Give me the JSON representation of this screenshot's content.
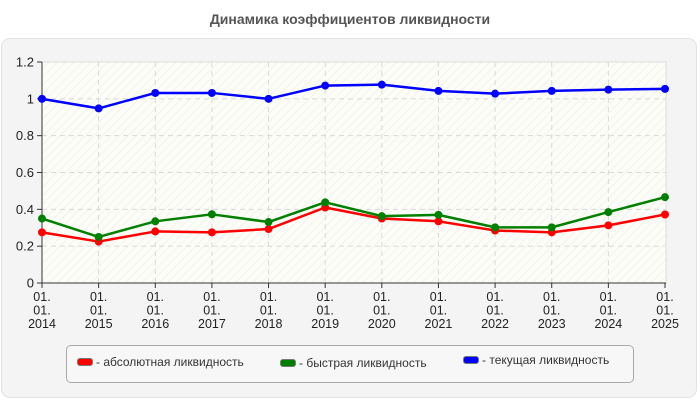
{
  "title": "Динамика коэффициентов ликвидности",
  "legend": [
    {
      "label": "- абсолютная ликвидность",
      "color": "#ff0000"
    },
    {
      "label": "- быстрая ликвидность",
      "color": "#008000"
    },
    {
      "label": "- текущая ликвидность",
      "color": "#0000ff"
    }
  ],
  "chart_data": {
    "type": "line",
    "title": "Динамика коэффициентов ликвидности",
    "xlabel": "",
    "ylabel": "",
    "ylim": [
      0,
      1.2
    ],
    "yticks": [
      0,
      0.2,
      0.4,
      0.6,
      0.8,
      1,
      1.2
    ],
    "ytick_labels": [
      "0",
      "0.2",
      "0.4",
      "0.6",
      "0.8",
      "1",
      "1.2"
    ],
    "grid": true,
    "legend_position": "bottom",
    "categories": [
      "01.01.2014",
      "01.01.2015",
      "01.01.2016",
      "01.01.2017",
      "01.01.2018",
      "01.01.2019",
      "01.01.2020",
      "01.01.2021",
      "01.01.2022",
      "01.01.2023",
      "01.01.2024",
      "01.01.2025"
    ],
    "category_labels": [
      [
        "01.",
        "01.",
        "2014"
      ],
      [
        "01.",
        "01.",
        "2015"
      ],
      [
        "01.",
        "01.",
        "2016"
      ],
      [
        "01.",
        "01.",
        "2017"
      ],
      [
        "01.",
        "01.",
        "2018"
      ],
      [
        "01.",
        "01.",
        "2019"
      ],
      [
        "01.",
        "01.",
        "2020"
      ],
      [
        "01.",
        "01.",
        "2021"
      ],
      [
        "01.",
        "01.",
        "2022"
      ],
      [
        "01.",
        "01.",
        "2023"
      ],
      [
        "01.",
        "01.",
        "2024"
      ],
      [
        "01.",
        "01.",
        "2025"
      ]
    ],
    "series": [
      {
        "name": "абсолютная ликвидность",
        "color": "#ff0000",
        "values": [
          0.275,
          0.225,
          0.28,
          0.275,
          0.293,
          0.41,
          0.35,
          0.335,
          0.285,
          0.275,
          0.313,
          0.372
        ]
      },
      {
        "name": "быстрая ликвидность",
        "color": "#008000",
        "values": [
          0.35,
          0.25,
          0.335,
          0.373,
          0.331,
          0.438,
          0.363,
          0.37,
          0.302,
          0.302,
          0.385,
          0.466
        ]
      },
      {
        "name": "текущая ликвидность",
        "color": "#0000ff",
        "values": [
          1.0,
          0.948,
          1.032,
          1.032,
          1.0,
          1.072,
          1.077,
          1.043,
          1.028,
          1.043,
          1.05,
          1.054
        ]
      }
    ]
  }
}
